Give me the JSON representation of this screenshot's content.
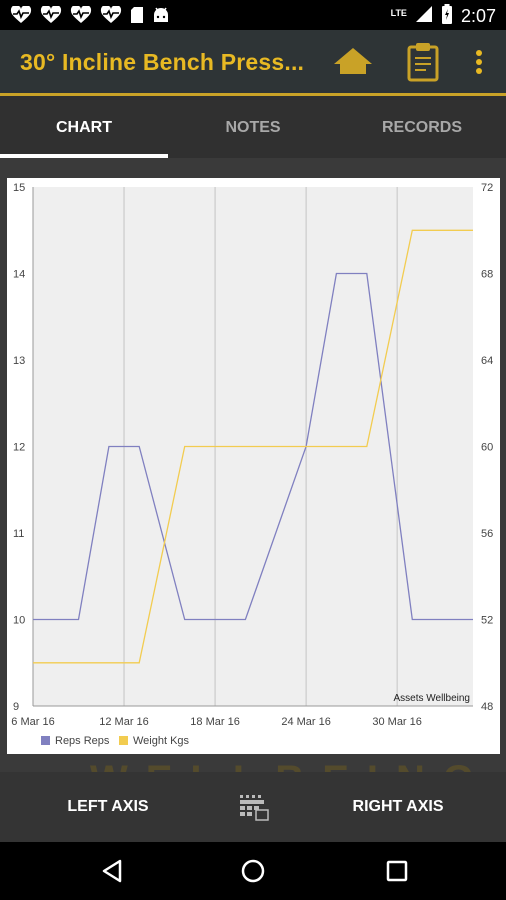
{
  "status_bar": {
    "time": "2:07",
    "network": "LTE",
    "icons": [
      "heart-rate-icon",
      "heart-rate-icon",
      "heart-rate-icon",
      "heart-rate-icon",
      "sd-card-icon",
      "android-icon",
      "signal-icon",
      "battery-icon"
    ]
  },
  "app_bar": {
    "title": "30° Incline Bench Press...",
    "icons": [
      "home-icon",
      "clipboard-icon",
      "more-vert-icon"
    ]
  },
  "tabs": [
    {
      "label": "CHART",
      "active": true
    },
    {
      "label": "NOTES",
      "active": false
    },
    {
      "label": "RECORDS",
      "active": false
    }
  ],
  "background_text": "WELLBEING",
  "chart_data": {
    "type": "line",
    "x_labels": [
      "6 Mar 16",
      "12 Mar 16",
      "18 Mar 16",
      "24 Mar 16",
      "30 Mar 16"
    ],
    "watermark": "Assets Wellbeing",
    "legend_position": "bottom-left",
    "grid": true,
    "left_axis": {
      "min": 9,
      "max": 15,
      "ticks": [
        "9",
        "10",
        "11",
        "12",
        "13",
        "14",
        "15"
      ]
    },
    "right_axis": {
      "min": 48,
      "max": 72,
      "ticks": [
        "48",
        "52",
        "56",
        "60",
        "64",
        "68",
        "72"
      ]
    },
    "series": [
      {
        "name": "Reps Reps",
        "axis": "left",
        "color": "#8080c0",
        "points": [
          [
            "2016-03-06",
            10
          ],
          [
            "2016-03-09",
            10
          ],
          [
            "2016-03-11",
            12
          ],
          [
            "2016-03-13",
            12
          ],
          [
            "2016-03-16",
            10
          ],
          [
            "2016-03-20",
            10
          ],
          [
            "2016-03-24",
            12
          ],
          [
            "2016-03-26",
            14
          ],
          [
            "2016-03-28",
            14
          ],
          [
            "2016-03-31",
            10
          ],
          [
            "2016-04-04",
            10
          ]
        ]
      },
      {
        "name": "Weight Kgs",
        "axis": "right",
        "color": "#f2cc50",
        "points": [
          [
            "2016-03-06",
            50
          ],
          [
            "2016-03-13",
            50
          ],
          [
            "2016-03-16",
            60
          ],
          [
            "2016-03-28",
            60
          ],
          [
            "2016-03-31",
            70
          ],
          [
            "2016-04-04",
            70
          ]
        ]
      }
    ]
  },
  "bottom_bar": {
    "left_axis_label": "LEFT AXIS",
    "right_axis_label": "RIGHT AXIS",
    "center_icon": "calendar-icon"
  },
  "nav_bar": {
    "icons": [
      "back-icon",
      "home-circle-icon",
      "recents-icon"
    ]
  }
}
